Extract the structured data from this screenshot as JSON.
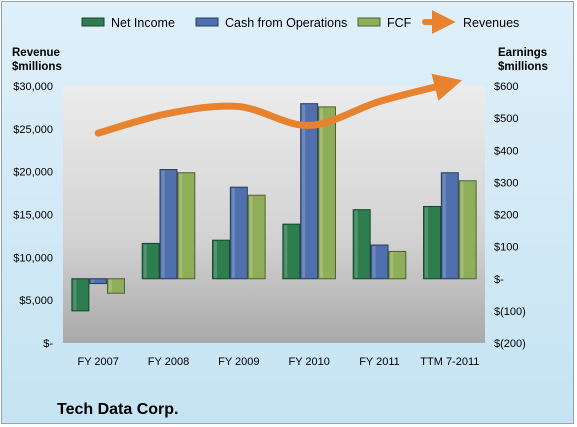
{
  "chart_data": {
    "type": "bar",
    "title": "",
    "company_label": "Tech Data Corp.",
    "categories": [
      "FY 2007",
      "FY 2008",
      "FY 2009",
      "FY 2010",
      "FY 2011",
      "TTM 7-2011"
    ],
    "series": [
      {
        "name": "Net Income",
        "axis": "right",
        "color": "#2e7d4f",
        "values": [
          -100,
          110,
          120,
          170,
          215,
          225
        ]
      },
      {
        "name": "Cash from Operations",
        "axis": "right",
        "color": "#4f6fad",
        "values": [
          -15,
          340,
          285,
          545,
          105,
          330
        ]
      },
      {
        "name": "FCF",
        "axis": "right",
        "color": "#8fae5a",
        "values": [
          -45,
          330,
          260,
          535,
          85,
          305
        ]
      }
    ],
    "line_series": {
      "name": "Revenues",
      "axis": "left",
      "color": "#e8822e",
      "values": [
        24500,
        26800,
        27600,
        25400,
        28200,
        30300
      ]
    },
    "y_left": {
      "label": [
        "Revenue",
        "$millions"
      ],
      "range": [
        0,
        30000
      ],
      "ticks": [
        "$-",
        "$5,000",
        "$10,000",
        "$15,000",
        "$20,000",
        "$25,000",
        "$30,000"
      ]
    },
    "y_right": {
      "label": [
        "Earnings",
        "$millions"
      ],
      "range": [
        -200,
        600
      ],
      "ticks": [
        "$(200)",
        "$(100)",
        "$-",
        "$100",
        "$200",
        "$300",
        "$400",
        "$500",
        "$600"
      ]
    },
    "legend_position": "top",
    "grid": false
  }
}
